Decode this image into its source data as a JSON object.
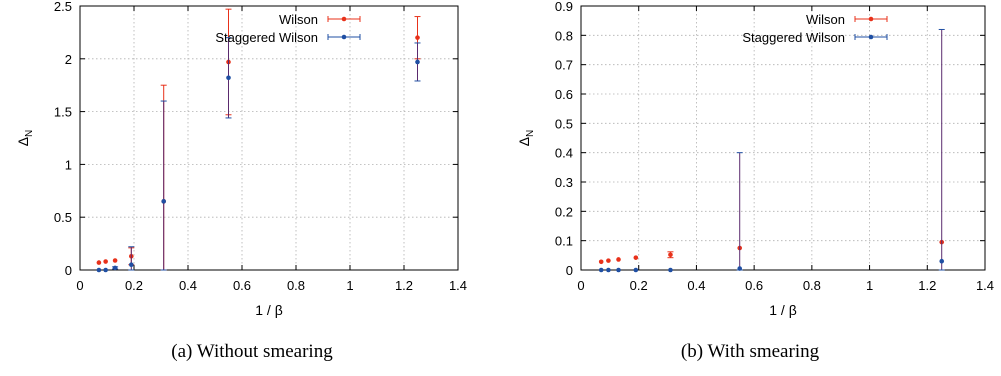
{
  "colors": {
    "wilson": "#e8311a",
    "staggered": "#1f4fa3",
    "errorbar_overlap": "#5a2a6e",
    "grid": "#b0b0b0"
  },
  "chart_data": [
    {
      "type": "scatter",
      "caption": "(a) Without smearing",
      "xlabel": "1 / β",
      "ylabel": "Δ_N",
      "xlim": [
        0,
        1.4
      ],
      "ylim": [
        0,
        2.5
      ],
      "x_ticks": [
        "0",
        "0.2",
        "0.4",
        "0.6",
        "0.8",
        "1",
        "1.2",
        "1.4"
      ],
      "y_ticks": [
        "0",
        "0.5",
        "1",
        "1.5",
        "2",
        "2.5"
      ],
      "grid": true,
      "legend_position": "top-right",
      "series": [
        {
          "name": "Wilson",
          "points": [
            {
              "x": 0.07,
              "y": 0.07,
              "err": 0.0
            },
            {
              "x": 0.095,
              "y": 0.08,
              "err": 0.0
            },
            {
              "x": 0.13,
              "y": 0.09,
              "err": 0.0
            },
            {
              "x": 0.19,
              "y": 0.13,
              "err": 0.08
            },
            {
              "x": 0.31,
              "y": 0.65,
              "err": 1.1
            },
            {
              "x": 0.55,
              "y": 1.97,
              "err": 0.5
            },
            {
              "x": 1.25,
              "y": 2.2,
              "err": 0.2
            }
          ]
        },
        {
          "name": "Staggered Wilson",
          "points": [
            {
              "x": 0.07,
              "y": 0.0,
              "err": 0.0
            },
            {
              "x": 0.095,
              "y": 0.0,
              "err": 0.0
            },
            {
              "x": 0.13,
              "y": 0.02,
              "err": 0.01
            },
            {
              "x": 0.19,
              "y": 0.05,
              "err": 0.17
            },
            {
              "x": 0.31,
              "y": 0.65,
              "err": 0.95
            },
            {
              "x": 0.55,
              "y": 1.82,
              "err": 0.38
            },
            {
              "x": 1.25,
              "y": 1.97,
              "err": 0.18
            }
          ]
        }
      ]
    },
    {
      "type": "scatter",
      "caption": "(b) With smearing",
      "xlabel": "1 / β",
      "ylabel": "Δ_N",
      "xlim": [
        0,
        1.4
      ],
      "ylim": [
        0,
        0.9
      ],
      "x_ticks": [
        "0",
        "0.2",
        "0.4",
        "0.6",
        "0.8",
        "1",
        "1.2",
        "1.4"
      ],
      "y_ticks": [
        "0",
        "0.1",
        "0.2",
        "0.3",
        "0.4",
        "0.5",
        "0.6",
        "0.7",
        "0.8",
        "0.9"
      ],
      "grid": true,
      "legend_position": "top-right",
      "series": [
        {
          "name": "Wilson",
          "points": [
            {
              "x": 0.07,
              "y": 0.028,
              "err": 0.0
            },
            {
              "x": 0.095,
              "y": 0.032,
              "err": 0.0
            },
            {
              "x": 0.13,
              "y": 0.036,
              "err": 0.0
            },
            {
              "x": 0.19,
              "y": 0.042,
              "err": 0.0
            },
            {
              "x": 0.31,
              "y": 0.052,
              "err": 0.01
            },
            {
              "x": 0.55,
              "y": 0.075,
              "err": 0.0
            },
            {
              "x": 1.25,
              "y": 0.095,
              "err": 0.0
            }
          ]
        },
        {
          "name": "Staggered Wilson",
          "points": [
            {
              "x": 0.07,
              "y": 0.0,
              "err": 0.0
            },
            {
              "x": 0.095,
              "y": 0.0,
              "err": 0.0
            },
            {
              "x": 0.13,
              "y": 0.0,
              "err": 0.0
            },
            {
              "x": 0.19,
              "y": 0.0,
              "err": 0.0
            },
            {
              "x": 0.31,
              "y": 0.0,
              "err": 0.0
            },
            {
              "x": 0.55,
              "y": 0.005,
              "err": 0.395
            },
            {
              "x": 1.25,
              "y": 0.03,
              "err": 0.79
            }
          ]
        }
      ]
    }
  ]
}
